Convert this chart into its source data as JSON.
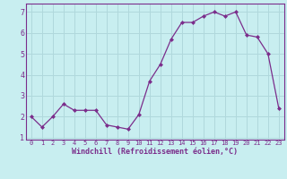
{
  "x": [
    0,
    1,
    2,
    3,
    4,
    5,
    6,
    7,
    8,
    9,
    10,
    11,
    12,
    13,
    14,
    15,
    16,
    17,
    18,
    19,
    20,
    21,
    22,
    23
  ],
  "y": [
    2.0,
    1.5,
    2.0,
    2.6,
    2.3,
    2.3,
    2.3,
    1.6,
    1.5,
    1.4,
    2.1,
    3.7,
    4.5,
    5.7,
    6.5,
    6.5,
    6.8,
    7.0,
    6.8,
    7.0,
    5.9,
    5.8,
    5.0,
    2.4
  ],
  "line_color": "#7B2D8B",
  "marker_color": "#7B2D8B",
  "bg_color": "#c8eef0",
  "grid_color": "#b0d8dc",
  "xlabel": "Windchill (Refroidissement éolien,°C)",
  "xlabel_color": "#7B2D8B",
  "tick_color": "#7B2D8B",
  "spine_color": "#7B2D8B",
  "ylim": [
    0.9,
    7.4
  ],
  "xlim": [
    -0.5,
    23.5
  ],
  "yticks": [
    1,
    2,
    3,
    4,
    5,
    6,
    7
  ],
  "xticks": [
    0,
    1,
    2,
    3,
    4,
    5,
    6,
    7,
    8,
    9,
    10,
    11,
    12,
    13,
    14,
    15,
    16,
    17,
    18,
    19,
    20,
    21,
    22,
    23
  ]
}
